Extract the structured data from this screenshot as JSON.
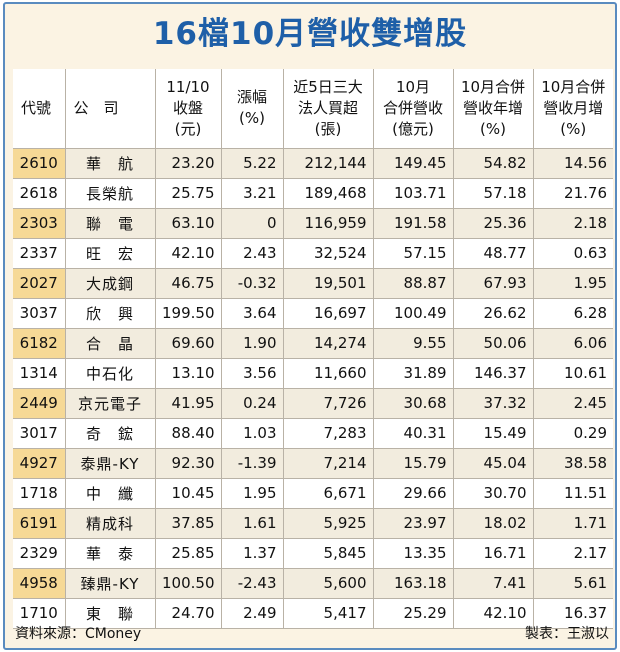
{
  "title": "16檔10月營收雙增股",
  "columns": [
    "代號",
    "公　司",
    "11/10\n收盤\n(元)",
    "漲幅\n(%)",
    "近5日三大\n法人買超\n(張)",
    "10月\n合併營收\n(億元)",
    "10月合併\n營收年增\n(%)",
    "10月合併\n營收月增\n(%)"
  ],
  "rows": [
    [
      "2610",
      "華　航",
      "23.20",
      "5.22",
      "212,144",
      "149.45",
      "54.82",
      "14.56"
    ],
    [
      "2618",
      "長榮航",
      "25.75",
      "3.21",
      "189,468",
      "103.71",
      "57.18",
      "21.76"
    ],
    [
      "2303",
      "聯　電",
      "63.10",
      "0",
      "116,959",
      "191.58",
      "25.36",
      "2.18"
    ],
    [
      "2337",
      "旺　宏",
      "42.10",
      "2.43",
      "32,524",
      "57.15",
      "48.77",
      "0.63"
    ],
    [
      "2027",
      "大成鋼",
      "46.75",
      "-0.32",
      "19,501",
      "88.87",
      "67.93",
      "1.95"
    ],
    [
      "3037",
      "欣　興",
      "199.50",
      "3.64",
      "16,697",
      "100.49",
      "26.62",
      "6.28"
    ],
    [
      "6182",
      "合　晶",
      "69.60",
      "1.90",
      "14,274",
      "9.55",
      "50.06",
      "6.06"
    ],
    [
      "1314",
      "中石化",
      "13.10",
      "3.56",
      "11,660",
      "31.89",
      "146.37",
      "10.61"
    ],
    [
      "2449",
      "京元電子",
      "41.95",
      "0.24",
      "7,726",
      "30.68",
      "37.32",
      "2.45"
    ],
    [
      "3017",
      "奇　鋐",
      "88.40",
      "1.03",
      "7,283",
      "40.31",
      "15.49",
      "0.29"
    ],
    [
      "4927",
      "泰鼎-KY",
      "92.30",
      "-1.39",
      "7,214",
      "15.79",
      "45.04",
      "38.58"
    ],
    [
      "1718",
      "中　纖",
      "10.45",
      "1.95",
      "6,671",
      "29.66",
      "30.70",
      "11.51"
    ],
    [
      "6191",
      "精成科",
      "37.85",
      "1.61",
      "5,925",
      "23.97",
      "18.02",
      "1.71"
    ],
    [
      "2329",
      "華　泰",
      "25.85",
      "1.37",
      "5,845",
      "13.35",
      "16.71",
      "2.17"
    ],
    [
      "4958",
      "臻鼎-KY",
      "100.50",
      "-2.43",
      "5,600",
      "163.18",
      "7.41",
      "5.61"
    ],
    [
      "1710",
      "東　聯",
      "24.70",
      "2.49",
      "5,417",
      "25.29",
      "42.10",
      "16.37"
    ]
  ],
  "footer": {
    "source": "資料來源：CMoney",
    "maker": "製表：王淑以"
  },
  "colors": {
    "title": "#1e5fa8",
    "border": "#5a8bbf",
    "background": "#fbf3e3",
    "code_highlight": "#f6d996"
  }
}
